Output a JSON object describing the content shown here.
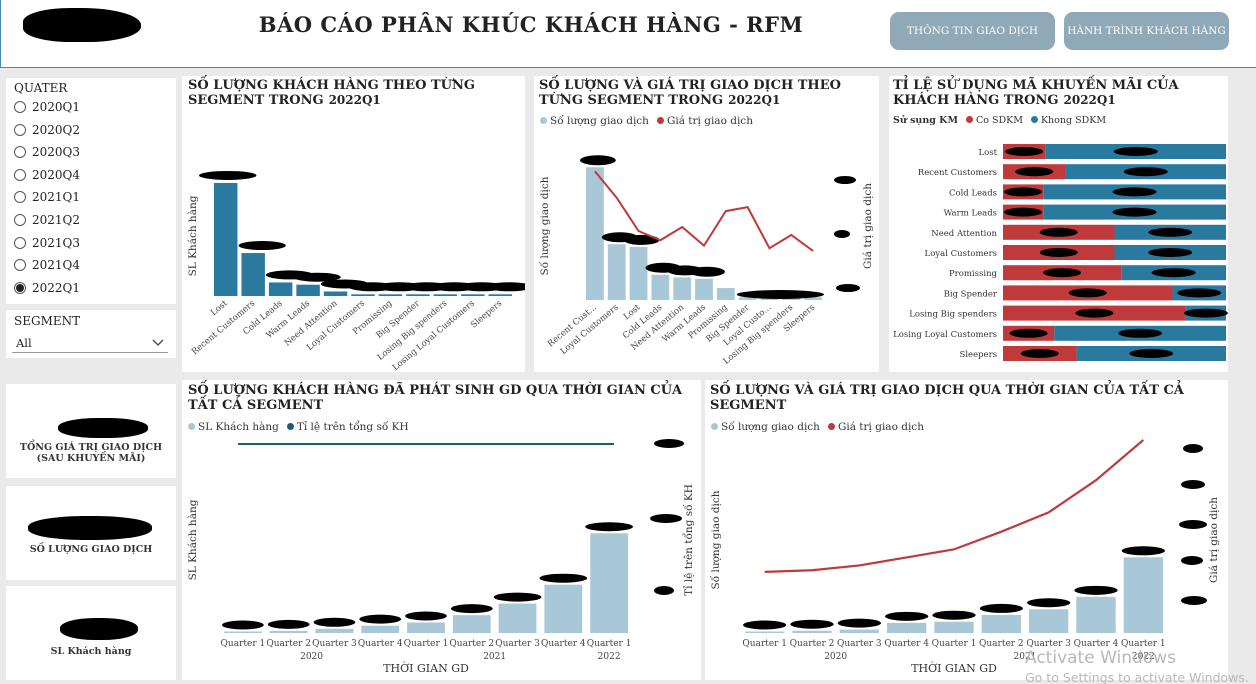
{
  "header": {
    "title": "BÁO CÁO PHÂN KHÚC KHÁCH HÀNG - RFM",
    "btn_transactions": "THÔNG TIN GIAO DỊCH",
    "btn_journey": "HÀNH TRÌNH KHÁCH HÀNG"
  },
  "slicer": {
    "quarter_label": "QUATER",
    "quarters": [
      "2020Q1",
      "2020Q2",
      "2020Q3",
      "2020Q4",
      "2021Q1",
      "2021Q2",
      "2021Q3",
      "2021Q4",
      "2022Q1"
    ],
    "selected": "2022Q1",
    "segment_label": "SEGMENT",
    "segment_value": "All"
  },
  "kpis": {
    "total_value_label": "TỔNG GIÁ TRỊ GIAO DỊCH (SAU KHUYẾN MÃI)",
    "transactions_label": "SỐ LƯỢNG GIAO DỊCH",
    "customers_label": "SL Khách hàng"
  },
  "chart1": {
    "title": "SỐ LƯỢNG KHÁCH HÀNG THEO TỪNG SEGMENT TRONG",
    "period": "2022Q1",
    "ylabel": "SL Khách hàng"
  },
  "chart2": {
    "title": "SỐ LƯỢNG VÀ GIÁ TRỊ GIAO DỊCH THEO TỪNG SEGMENT TRONG",
    "period": "2022Q1",
    "legend_bar": "Số lượng giao dịch",
    "legend_line": "Giá trị giao dịch",
    "ylabel_left": "Số lượng giao dịch",
    "ylabel_right": "Giá trị giao dịch"
  },
  "chart3": {
    "title": "TỈ LỆ SỬ DỤNG MÃ KHUYẾN MÃI CỦA KHÁCH HÀNG TRONG",
    "period": "2022Q1",
    "legend_title": "Sử sụng KM",
    "legend_yes": "Co  SDKM",
    "legend_no": "Khong SDKM"
  },
  "chart4": {
    "title": "SỐ LƯỢNG KHÁCH HÀNG ĐÃ PHÁT SINH GD QUA THỜI GIAN CỦA TẤT CẢ SEGMENT",
    "legend_bar": "SL Khách hàng",
    "legend_line": "Tỉ lệ trên tổng số KH",
    "ylabel_left": "SL Khách hàng",
    "ylabel_right": "Tỉ lệ trên tổng số KH",
    "xlabel": "THỜI GIAN GD"
  },
  "chart5": {
    "title": "SỐ LƯỢNG VÀ GIÁ TRỊ GIAO DỊCH QUA THỜI GIAN CỦA TẤT CẢ SEGMENT",
    "legend_bar": "Số lượng giao dịch",
    "legend_line": "Giá trị giao dịch",
    "ylabel_left": "Số lượng giao dịch",
    "ylabel_right": "Giá trị giao dịch",
    "xlabel": "THỜI GIAN GD"
  },
  "colors": {
    "dark_blue": "#2a7aa0",
    "light_blue": "#a8c8d8",
    "red": "#c0393b",
    "navy_line": "#1d5a73",
    "button": "#8fa9b8"
  },
  "chart_data": [
    {
      "type": "bar",
      "id": "segment_customers",
      "categories": [
        "Lost",
        "Recent Customers",
        "Cold Leads",
        "Warm Leads",
        "Need Attention",
        "Loyal Customers",
        "Promissing",
        "Big Spender",
        "Losing Big spenders",
        "Losing Loyal Customers",
        "Sleepers"
      ],
      "values": [
        100,
        38,
        12,
        10,
        4,
        1.5,
        1.5,
        1.5,
        1.5,
        1.5,
        1.5
      ],
      "ylim": [
        0,
        115
      ]
    },
    {
      "type": "bar",
      "id": "segment_transactions",
      "categories": [
        "Recent Cust...",
        "Loyal Customers",
        "Lost",
        "Cold Leads",
        "Need Attention",
        "Warm Leads",
        "Promissing",
        "Big Spender",
        "Loyal Custo...",
        "Losing Big spenders",
        "Sleepers"
      ],
      "series": [
        {
          "name": "Số lượng giao dịch",
          "type": "bar",
          "values": [
            100,
            42,
            40,
            19,
            17,
            16,
            9,
            2,
            2,
            2,
            2
          ]
        },
        {
          "name": "Giá trị giao dịch",
          "type": "line",
          "values": [
            100,
            80,
            55,
            48,
            58,
            44,
            70,
            73,
            42,
            52,
            40
          ]
        }
      ],
      "ylim": [
        0,
        110
      ]
    },
    {
      "type": "bar",
      "id": "promo_usage",
      "categories": [
        "Lost",
        "Recent Customers",
        "Cold Leads",
        "Warm Leads",
        "Need Attention",
        "Loyal Customers",
        "Promissing",
        "Big Spender",
        "Losing Big spenders",
        "Losing Loyal Customers",
        "Sleepers"
      ],
      "series": [
        {
          "name": "Co  SDKM",
          "values": [
            19,
            28,
            18,
            18,
            50,
            50,
            53,
            76,
            82,
            23,
            33
          ]
        },
        {
          "name": "Khong SDKM",
          "values": [
            81,
            72,
            82,
            82,
            50,
            50,
            47,
            24,
            18,
            77,
            67
          ]
        }
      ],
      "stacked": true,
      "ylim": [
        0,
        100
      ]
    },
    {
      "type": "bar",
      "id": "customers_over_time",
      "categories": [
        "Quarter 1",
        "Quarter 2",
        "Quarter 3",
        "Quarter 4",
        "Quarter 1",
        "Quarter 2",
        "Quarter 3",
        "Quarter 4",
        "Quarter 1"
      ],
      "groups": [
        "2020",
        "2021",
        "2022"
      ],
      "series": [
        {
          "name": "SL Khách hàng",
          "type": "bar",
          "values": [
            1,
            2,
            4,
            7,
            10,
            17,
            28,
            46,
            95
          ]
        },
        {
          "name": "Tỉ lệ trên tổng số KH",
          "type": "line",
          "values": [
            100,
            100,
            100,
            100,
            100,
            100,
            100,
            100,
            100
          ]
        }
      ],
      "ylim": [
        0,
        100
      ]
    },
    {
      "type": "bar",
      "id": "transactions_over_time",
      "categories": [
        "Quarter 1",
        "Quarter 2",
        "Quarter 3",
        "Quarter 4",
        "Quarter 1",
        "Quarter 2",
        "Quarter 3",
        "Quarter 4",
        "Quarter 1"
      ],
      "groups": [
        "2020",
        "2021",
        "2022"
      ],
      "series": [
        {
          "name": "Số lượng giao dịch",
          "type": "bar",
          "values": [
            1,
            2,
            3,
            9,
            10,
            16,
            21,
            32,
            67
          ]
        },
        {
          "name": "Giá trị giao dịch",
          "type": "line",
          "values": [
            38,
            39,
            42,
            47,
            52,
            63,
            75,
            95,
            120
          ]
        }
      ],
      "ylim": [
        0,
        120
      ]
    }
  ],
  "watermark": {
    "line1": "Activate Windows",
    "line2": "Go to Settings to activate Windows."
  }
}
